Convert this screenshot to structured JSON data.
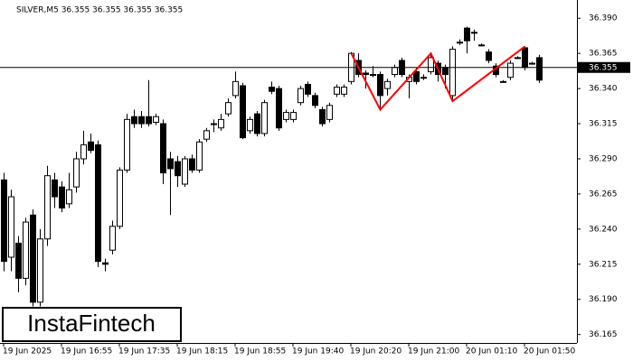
{
  "chart_data": {
    "type": "candlestick",
    "header": "SILVER,M5  36.355 36.355 36.355 36.355",
    "watermark": "InstaFintech",
    "categories": [
      "19 Jun 2025",
      null,
      null,
      null,
      null,
      null,
      null,
      null,
      "19 Jun 16:55",
      null,
      null,
      null,
      null,
      null,
      null,
      null,
      "19 Jun 17:35",
      null,
      null,
      null,
      null,
      null,
      null,
      null,
      "19 Jun 18:15",
      null,
      null,
      null,
      null,
      null,
      null,
      null,
      "19 Jun 18:55",
      null,
      null,
      null,
      null,
      null,
      null,
      null,
      "19 Jun 19:40",
      null,
      null,
      null,
      null,
      null,
      null,
      null,
      "19 Jun 20:20",
      null,
      null,
      null,
      null,
      null,
      null,
      null,
      "19 Jun 21:00",
      null,
      null,
      null,
      null,
      null,
      null,
      null,
      "20 Jun 01:10",
      null,
      null,
      null,
      null,
      null,
      null,
      null,
      "20 Jun 01:50",
      null,
      null
    ],
    "ohlc": [
      [
        36.275,
        36.28,
        36.21,
        36.217
      ],
      [
        36.22,
        36.268,
        36.21,
        36.263
      ],
      [
        36.23,
        36.235,
        36.195,
        36.205
      ],
      [
        36.205,
        36.248,
        36.2,
        36.245
      ],
      [
        36.25,
        36.254,
        36.185,
        36.188
      ],
      [
        36.188,
        36.24,
        36.185,
        36.233
      ],
      [
        36.233,
        36.285,
        36.228,
        36.278
      ],
      [
        36.275,
        36.28,
        36.255,
        36.263
      ],
      [
        36.27,
        36.274,
        36.252,
        36.255
      ],
      [
        36.258,
        36.28,
        36.255,
        36.268
      ],
      [
        36.27,
        36.295,
        36.266,
        36.29
      ],
      [
        36.29,
        36.31,
        36.286,
        36.3
      ],
      [
        36.302,
        36.308,
        36.294,
        36.296
      ],
      [
        36.3,
        36.303,
        36.213,
        36.217
      ],
      [
        36.216,
        36.219,
        36.21,
        36.215
      ],
      [
        36.225,
        36.246,
        36.222,
        36.242
      ],
      [
        36.242,
        36.284,
        36.24,
        36.282
      ],
      [
        36.282,
        36.322,
        36.28,
        36.318
      ],
      [
        36.32,
        36.325,
        36.312,
        36.315
      ],
      [
        36.32,
        36.324,
        36.312,
        36.315
      ],
      [
        36.32,
        36.346,
        36.313,
        36.315
      ],
      [
        36.316,
        36.322,
        36.314,
        36.32
      ],
      [
        36.315,
        36.318,
        36.272,
        36.28
      ],
      [
        36.29,
        36.295,
        36.25,
        36.283
      ],
      [
        36.288,
        36.292,
        36.27,
        36.278
      ],
      [
        36.272,
        36.292,
        36.27,
        36.29
      ],
      [
        36.29,
        36.293,
        36.28,
        36.282
      ],
      [
        36.282,
        36.304,
        36.28,
        36.302
      ],
      [
        36.304,
        36.312,
        36.302,
        36.31
      ],
      [
        36.315,
        36.318,
        36.309,
        36.315
      ],
      [
        36.312,
        36.322,
        36.31,
        36.318
      ],
      [
        36.322,
        36.333,
        36.32,
        36.33
      ],
      [
        36.335,
        36.352,
        36.333,
        36.345
      ],
      [
        36.342,
        36.344,
        36.304,
        36.305
      ],
      [
        36.31,
        36.32,
        36.308,
        36.318
      ],
      [
        36.322,
        36.324,
        36.306,
        36.308
      ],
      [
        36.308,
        36.332,
        36.306,
        36.33
      ],
      [
        36.341,
        36.345,
        36.336,
        36.338
      ],
      [
        36.34,
        36.342,
        36.31,
        36.312
      ],
      [
        36.318,
        36.325,
        36.316,
        36.323
      ],
      [
        36.318,
        36.325,
        36.316,
        36.323
      ],
      [
        36.33,
        36.342,
        36.328,
        36.34
      ],
      [
        36.343,
        36.345,
        36.334,
        36.336
      ],
      [
        36.335,
        36.337,
        36.326,
        36.328
      ],
      [
        36.325,
        36.327,
        36.313,
        36.315
      ],
      [
        36.318,
        36.33,
        36.316,
        36.328
      ],
      [
        36.336,
        36.343,
        36.334,
        36.341
      ],
      [
        36.336,
        36.343,
        36.334,
        36.341
      ],
      [
        36.345,
        36.366,
        36.343,
        36.365
      ],
      [
        36.36,
        36.365,
        36.348,
        36.35
      ],
      [
        36.351,
        36.353,
        36.34,
        36.35
      ],
      [
        36.35,
        36.356,
        36.348,
        36.35
      ],
      [
        36.35,
        36.352,
        36.325,
        36.335
      ],
      [
        36.34,
        36.347,
        36.335,
        36.345
      ],
      [
        36.35,
        36.357,
        36.348,
        36.355
      ],
      [
        36.36,
        36.362,
        36.348,
        36.35
      ],
      [
        36.345,
        36.35,
        36.333,
        36.348
      ],
      [
        36.352,
        36.355,
        36.343,
        36.345
      ],
      [
        36.348,
        36.35,
        36.346,
        36.348
      ],
      [
        36.352,
        36.365,
        36.35,
        36.362
      ],
      [
        36.358,
        36.36,
        36.345,
        36.35
      ],
      [
        36.355,
        36.357,
        36.34,
        36.35
      ],
      [
        36.335,
        36.37,
        36.331,
        36.368
      ],
      [
        36.373,
        36.375,
        36.371,
        36.373
      ],
      [
        36.383,
        36.384,
        36.365,
        36.374
      ],
      [
        36.38,
        36.382,
        36.374,
        36.38
      ],
      [
        36.371,
        36.372,
        36.37,
        36.371
      ],
      [
        36.366,
        36.368,
        36.358,
        36.36
      ],
      [
        36.356,
        36.358,
        36.348,
        36.35
      ],
      [
        36.345,
        36.346,
        36.344,
        36.345
      ],
      [
        36.348,
        36.36,
        36.346,
        36.358
      ],
      [
        36.362,
        36.363,
        36.361,
        36.362
      ],
      [
        36.369,
        36.37,
        36.353,
        36.355
      ],
      [
        36.358,
        36.359,
        36.357,
        36.358
      ],
      [
        36.362,
        36.364,
        36.344,
        36.346
      ]
    ],
    "pattern": {
      "color": "#ff0000",
      "indices": [
        48,
        52,
        59,
        62,
        72
      ],
      "values": [
        36.365,
        36.325,
        36.365,
        36.331,
        36.37
      ]
    },
    "last_price": 36.355,
    "ylim": [
      36.159,
      36.403
    ],
    "yticks": [
      36.165,
      {
        "value": 36.19,
        "label": "36.190"
      },
      36.215,
      {
        "value": 36.24,
        "label": "36.240"
      },
      36.265,
      {
        "value": 36.29,
        "label": "36.290"
      },
      36.315,
      {
        "value": 36.34,
        "label": "36.340"
      },
      36.365,
      {
        "value": 36.39,
        "label": "36.390"
      }
    ]
  }
}
